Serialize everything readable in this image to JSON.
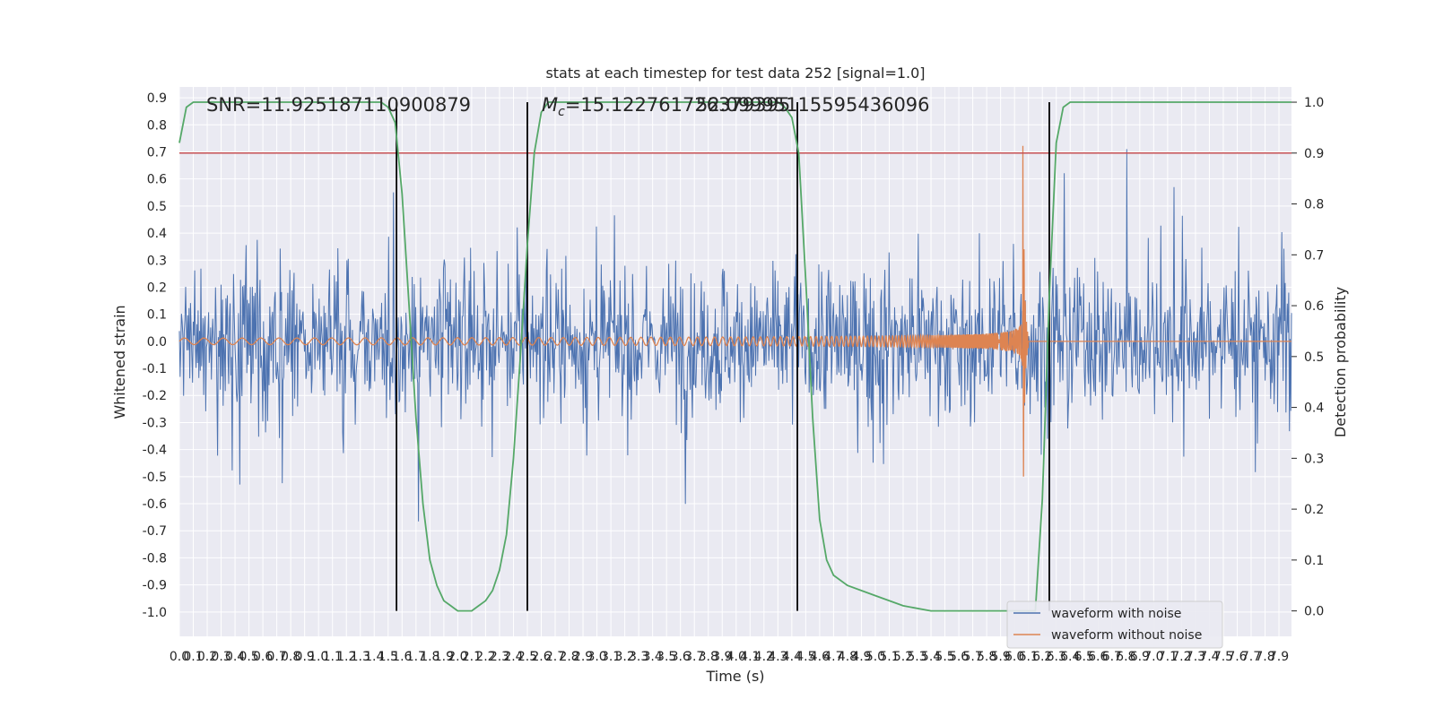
{
  "chart_data": {
    "type": "line",
    "title": "stats at each timestep for test data 252 [signal=1.0]",
    "xlabel": "Time (s)",
    "ylabel": "Whitened strain",
    "y2label": "Detection probability",
    "xlim": [
      0.0,
      7.99
    ],
    "ylim": [
      -1.09,
      0.94
    ],
    "y2lim": [
      -0.05,
      1.03
    ],
    "xticks": [
      "0.0",
      "0.1",
      "0.2",
      "0.3",
      "0.4",
      "0.5",
      "0.6",
      "0.7",
      "0.8",
      "0.9",
      "1.0",
      "1.1",
      "1.2",
      "1.3",
      "1.4",
      "1.5",
      "1.6",
      "1.7",
      "1.8",
      "1.9",
      "2.0",
      "2.1",
      "2.2",
      "2.3",
      "2.4",
      "2.5",
      "2.6",
      "2.7",
      "2.8",
      "2.9",
      "3.0",
      "3.1",
      "3.2",
      "3.3",
      "3.4",
      "3.5",
      "3.6",
      "3.7",
      "3.8",
      "3.9",
      "4.0",
      "4.1",
      "4.2",
      "4.3",
      "4.4",
      "4.5",
      "4.6",
      "4.7",
      "4.8",
      "4.9",
      "5.0",
      "5.1",
      "5.2",
      "5.3",
      "5.4",
      "5.5",
      "5.6",
      "5.7",
      "5.8",
      "5.9",
      "6.0",
      "6.1",
      "6.2",
      "6.3",
      "6.4",
      "6.5",
      "6.6",
      "6.7",
      "6.8",
      "6.9",
      "7.0",
      "7.1",
      "7.2",
      "7.3",
      "7.4",
      "7.5",
      "7.6",
      "7.7",
      "7.8",
      "7.9"
    ],
    "yticks": [
      "0.9",
      "0.8",
      "0.7",
      "0.6",
      "0.5",
      "0.4",
      "0.3",
      "0.2",
      "0.1",
      "0.0",
      "-0.1",
      "-0.2",
      "-0.3",
      "-0.4",
      "-0.5",
      "-0.6",
      "-0.7",
      "-0.8",
      "-0.9",
      "-1.0"
    ],
    "y2ticks": [
      "1.0",
      "0.9",
      "0.8",
      "0.7",
      "0.6",
      "0.5",
      "0.4",
      "0.3",
      "0.2",
      "0.1",
      "0.0"
    ],
    "annotations": {
      "snr": "SNR=11.925187110900879",
      "mc_prefix": "M",
      "mc_sub": "c",
      "mc_value": "=15.122761726379395",
      "overlap": "52.09995115595436096"
    },
    "threshold": 0.9,
    "vlines": [
      1.56,
      2.5,
      4.44,
      6.25
    ],
    "detection_probability": {
      "x": [
        0.0,
        0.05,
        0.1,
        0.2,
        0.4,
        0.8,
        1.2,
        1.45,
        1.5,
        1.55,
        1.6,
        1.65,
        1.7,
        1.75,
        1.8,
        1.85,
        1.9,
        1.95,
        2.0,
        2.05,
        2.1,
        2.15,
        2.2,
        2.25,
        2.3,
        2.35,
        2.4,
        2.45,
        2.5,
        2.55,
        2.6,
        2.65,
        2.7,
        2.8,
        3.5,
        4.2,
        4.3,
        4.35,
        4.4,
        4.45,
        4.5,
        4.55,
        4.6,
        4.65,
        4.7,
        4.8,
        5.0,
        5.2,
        5.4,
        5.6,
        5.8,
        6.1,
        6.15,
        6.2,
        6.25,
        6.3,
        6.35,
        6.4,
        6.5,
        7.99
      ],
      "y": [
        0.92,
        0.99,
        1.0,
        1.0,
        1.0,
        1.0,
        1.0,
        1.0,
        0.99,
        0.96,
        0.82,
        0.6,
        0.38,
        0.21,
        0.1,
        0.05,
        0.02,
        0.01,
        0.0,
        0.0,
        0.0,
        0.01,
        0.02,
        0.04,
        0.08,
        0.15,
        0.3,
        0.5,
        0.72,
        0.9,
        0.98,
        1.0,
        1.0,
        1.0,
        1.0,
        1.0,
        1.0,
        0.99,
        0.97,
        0.9,
        0.65,
        0.38,
        0.18,
        0.1,
        0.07,
        0.05,
        0.03,
        0.01,
        0.0,
        0.0,
        0.0,
        0.0,
        0.0,
        0.22,
        0.62,
        0.92,
        0.99,
        1.0,
        1.0,
        1.0
      ]
    },
    "series": [
      {
        "name": "waveform with noise",
        "color": "#4c72b0"
      },
      {
        "name": "waveform without noise",
        "color": "#dd8452"
      }
    ],
    "colors": {
      "plot_bg": "#eaeaf2",
      "grid": "#ffffff",
      "probability": "#55a868",
      "threshold": "#c44e52",
      "vline": "#000000"
    },
    "legend": "lower-right",
    "grid": true
  }
}
